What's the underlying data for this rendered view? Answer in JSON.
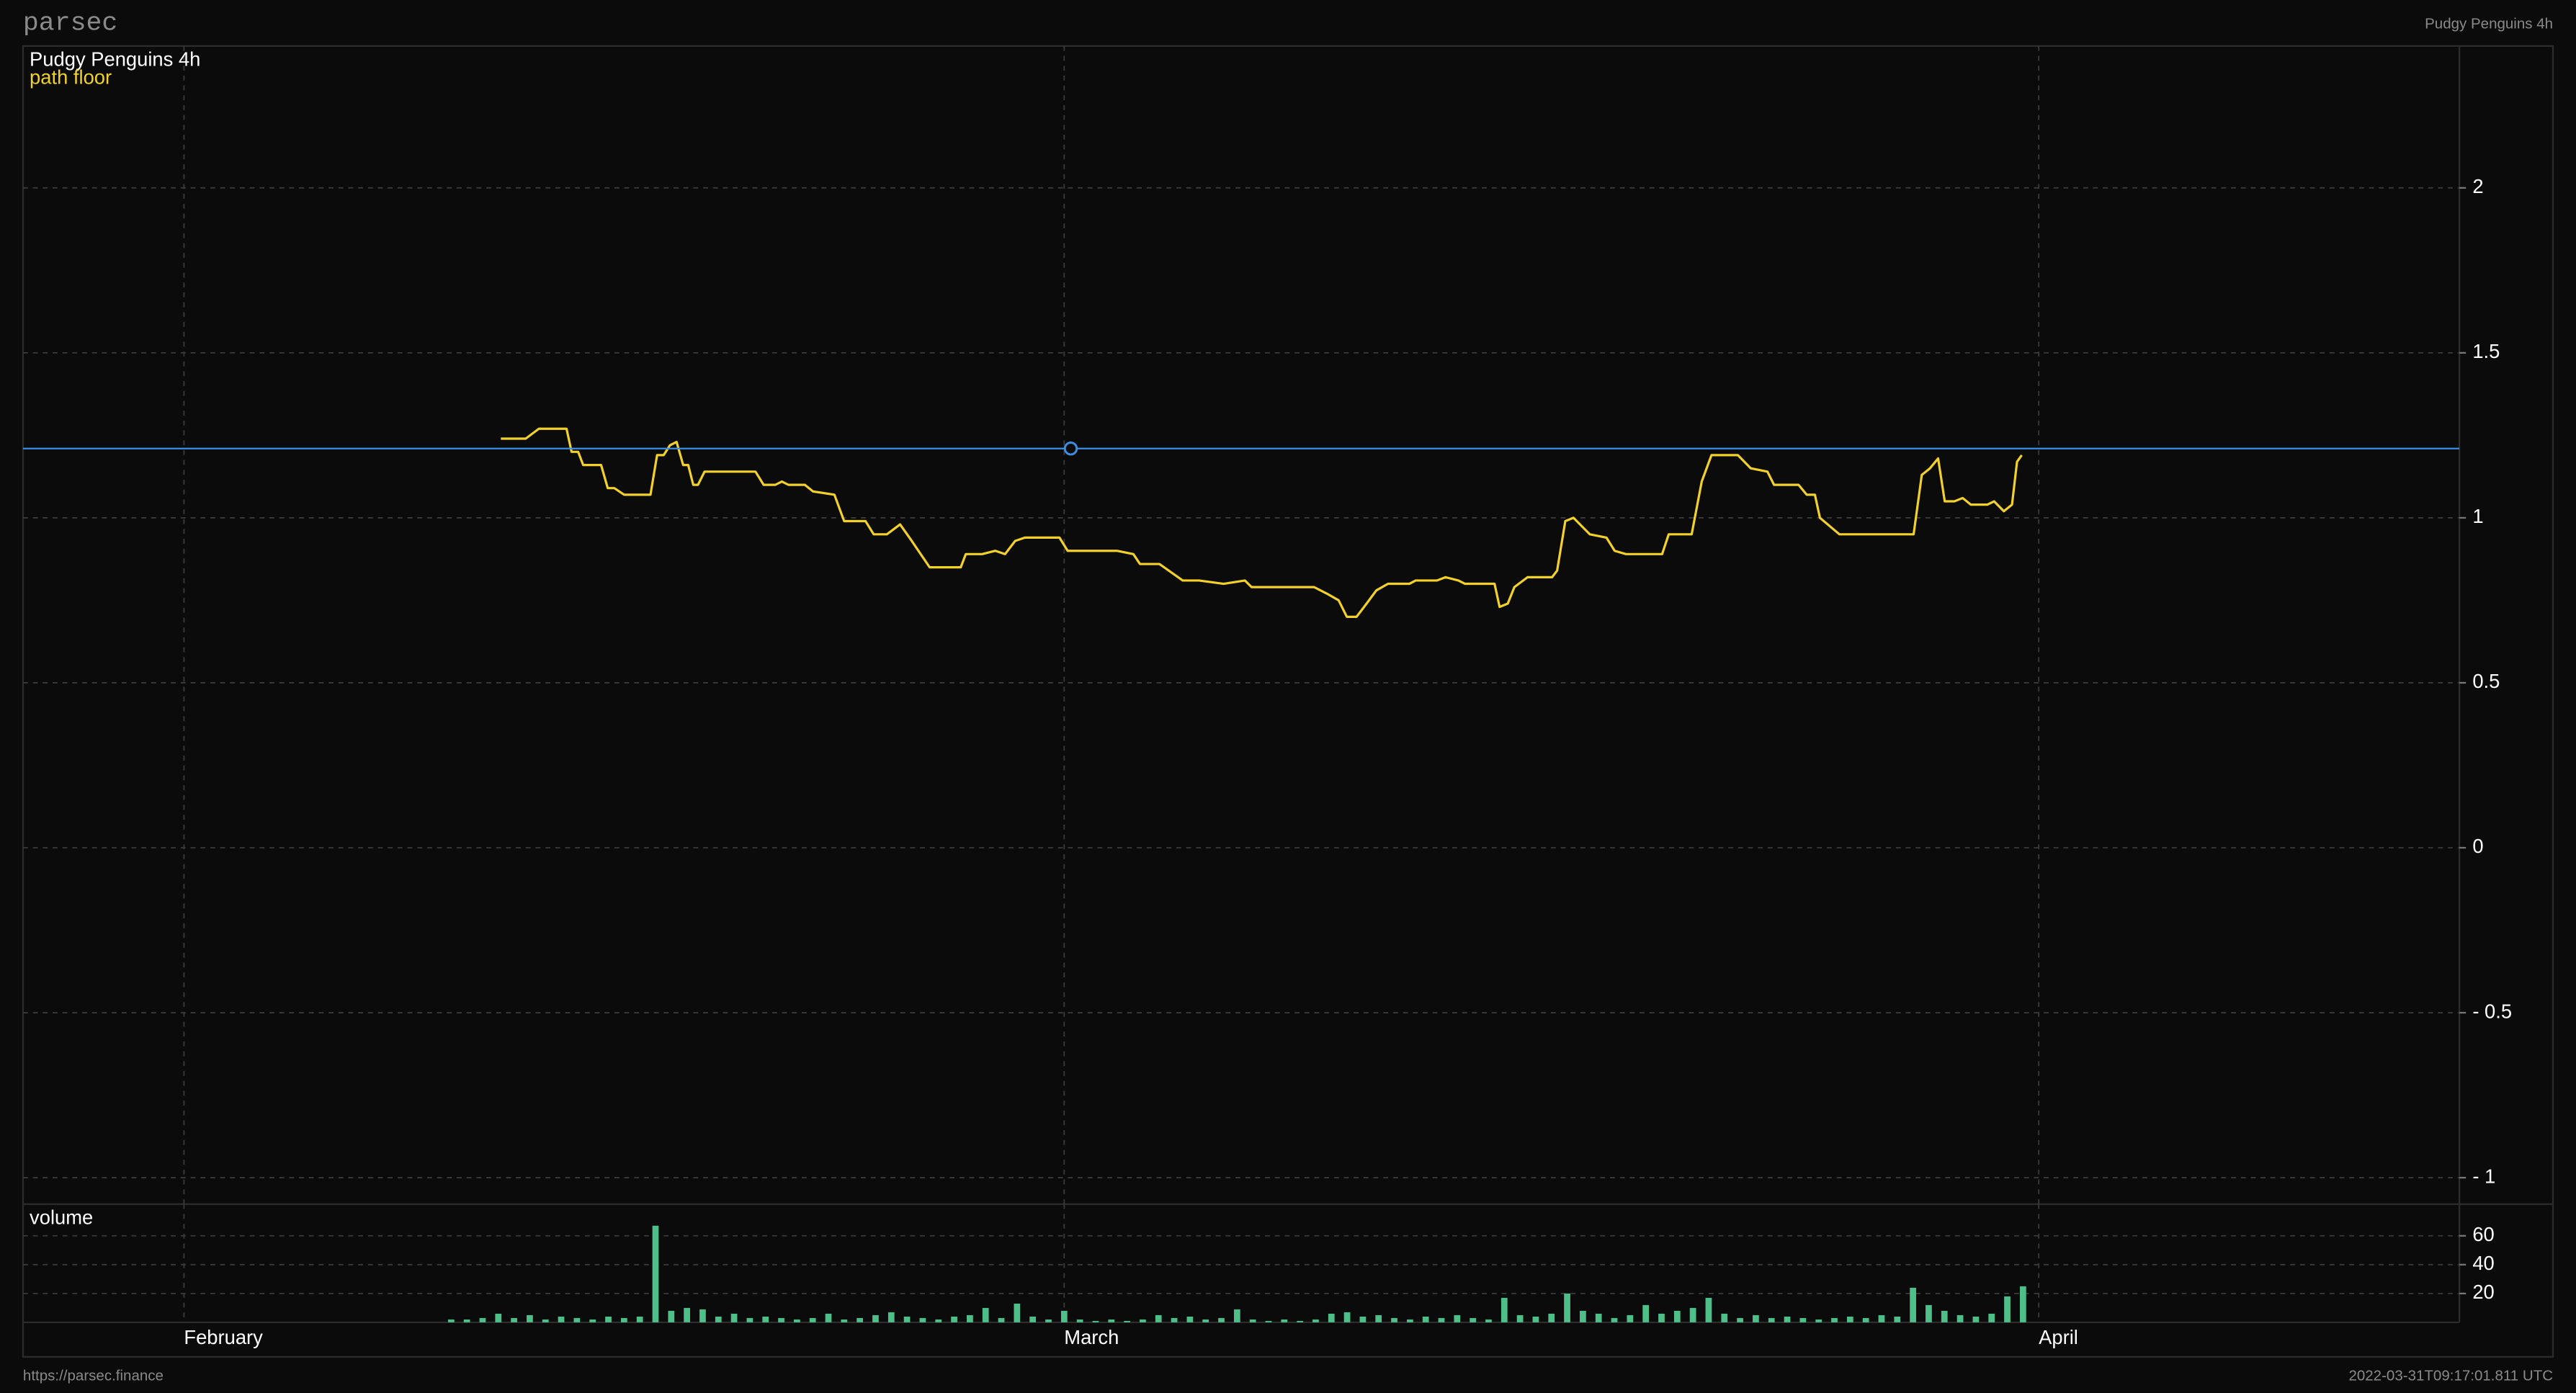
{
  "header": {
    "logo": "parsec",
    "title": "Pudgy Penguins 4h"
  },
  "chart_data": [
    {
      "type": "line",
      "title": "Pudgy Penguins 4h",
      "xlim": [
        -5.12,
        72.38
      ],
      "ylim": [
        -1.08,
        2.43
      ],
      "yticks": [
        2,
        1.5,
        1,
        0.5,
        0,
        {
          "value": -0.5,
          "label": "- 0.5"
        },
        {
          "value": -1,
          "label": "- 1"
        }
      ],
      "grid": true,
      "series": [
        {
          "name": "path floor",
          "color": "#f2d12b",
          "x": [
            10.08,
            10.87,
            11.29,
            12.17,
            12.33,
            12.54,
            12.7,
            13.27,
            13.48,
            13.69,
            14.0,
            14.84,
            15.05,
            15.26,
            15.46,
            15.67,
            15.88,
            16.04,
            16.2,
            16.35,
            16.56,
            16.93,
            18.18,
            18.44,
            18.81,
            19.02,
            19.23,
            19.75,
            20.01,
            20.69,
            21.0,
            21.68,
            21.94,
            22.36,
            22.78,
            23.15,
            23.72,
            24.71,
            24.87,
            25.39,
            25.81,
            26.12,
            26.44,
            26.75,
            27.85,
            28.11,
            29.68,
            30.2,
            30.41,
            31.03,
            31.77,
            32.29,
            33.07,
            33.75,
            33.96,
            35.95,
            36.36,
            36.73,
            36.99,
            37.3,
            37.62,
            37.93,
            38.3,
            38.98,
            39.18,
            39.86,
            40.13,
            40.54,
            40.75,
            41.69,
            41.85,
            42.11,
            42.32,
            42.74,
            43.52,
            43.68,
            43.94,
            44.2,
            44.72,
            45.25,
            45.51,
            45.87,
            47.02,
            47.23,
            47.96,
            48.28,
            48.59,
            49.43,
            49.84,
            50.37,
            50.58,
            51.36,
            51.62,
            51.88,
            52.04,
            52.66,
            55.02,
            55.28,
            55.54,
            55.8,
            56.01,
            56.32,
            56.58,
            56.84,
            57.37,
            57.58,
            57.89,
            58.15,
            58.31,
            58.46
          ],
          "values": [
            1.24,
            1.24,
            1.27,
            1.27,
            1.2,
            1.2,
            1.16,
            1.16,
            1.09,
            1.09,
            1.07,
            1.07,
            1.19,
            1.19,
            1.22,
            1.23,
            1.16,
            1.16,
            1.1,
            1.1,
            1.14,
            1.14,
            1.14,
            1.1,
            1.1,
            1.11,
            1.1,
            1.1,
            1.08,
            1.07,
            0.99,
            0.99,
            0.95,
            0.95,
            0.98,
            0.93,
            0.85,
            0.85,
            0.89,
            0.89,
            0.9,
            0.89,
            0.93,
            0.94,
            0.94,
            0.9,
            0.9,
            0.89,
            0.86,
            0.86,
            0.81,
            0.81,
            0.8,
            0.81,
            0.79,
            0.79,
            0.77,
            0.75,
            0.7,
            0.7,
            0.74,
            0.78,
            0.8,
            0.8,
            0.81,
            0.81,
            0.82,
            0.81,
            0.8,
            0.8,
            0.73,
            0.74,
            0.79,
            0.82,
            0.82,
            0.84,
            0.99,
            1.0,
            0.95,
            0.94,
            0.9,
            0.89,
            0.89,
            0.95,
            0.95,
            1.11,
            1.19,
            1.19,
            1.15,
            1.14,
            1.1,
            1.1,
            1.07,
            1.07,
            1.0,
            0.95,
            0.95,
            1.13,
            1.15,
            1.18,
            1.05,
            1.05,
            1.06,
            1.04,
            1.04,
            1.05,
            1.02,
            1.04,
            1.17,
            1.19
          ]
        }
      ],
      "crosshair": {
        "x": 28.21,
        "y": 1.21,
        "color": "#3a8ee6"
      }
    },
    {
      "type": "bar",
      "title": "volume",
      "color": "#4fbf8a",
      "xlim": [
        -5.12,
        72.38
      ],
      "xticks": [
        {
          "value": 0,
          "label": "February"
        },
        {
          "value": 28,
          "label": "March"
        },
        {
          "value": 59,
          "label": "April"
        }
      ],
      "ylim": [
        0,
        82
      ],
      "yticks": [
        60,
        40,
        20
      ],
      "grid": true,
      "x": [
        8.5,
        9,
        9.5,
        10,
        10.5,
        11,
        11.5,
        12,
        12.5,
        13,
        13.5,
        14,
        14.5,
        15,
        15.5,
        16,
        16.5,
        17,
        17.5,
        18,
        18.5,
        19,
        19.5,
        20,
        20.5,
        21,
        21.5,
        22,
        22.5,
        23,
        23.5,
        24,
        24.5,
        25,
        25.5,
        26,
        26.5,
        27,
        27.5,
        28,
        28.5,
        29,
        29.5,
        30,
        30.5,
        31,
        31.5,
        32,
        32.5,
        33,
        33.5,
        34,
        34.5,
        35,
        35.5,
        36,
        36.5,
        37,
        37.5,
        38,
        38.5,
        39,
        39.5,
        40,
        40.5,
        41,
        41.5,
        42,
        42.5,
        43,
        43.5,
        44,
        44.5,
        45,
        45.5,
        46,
        46.5,
        47,
        47.5,
        48,
        48.5,
        49,
        49.5,
        50,
        50.5,
        51,
        51.5,
        52,
        52.5,
        53,
        53.5,
        54,
        54.5,
        55,
        55.5,
        56,
        56.5,
        57,
        57.5,
        58,
        58.5
      ],
      "values": [
        2,
        2,
        3,
        6,
        3,
        5,
        2,
        4,
        3,
        2,
        4,
        3,
        4,
        67,
        8,
        10,
        9,
        4,
        6,
        3,
        4,
        3,
        2,
        3,
        6,
        2,
        3,
        5,
        7,
        4,
        3,
        2,
        4,
        5,
        10,
        3,
        13,
        4,
        2,
        8,
        2,
        1,
        2,
        1,
        2,
        5,
        3,
        4,
        2,
        3,
        9,
        2,
        1,
        2,
        1,
        2,
        6,
        7,
        4,
        5,
        3,
        2,
        4,
        3,
        5,
        3,
        2,
        17,
        5,
        4,
        6,
        20,
        8,
        6,
        3,
        5,
        12,
        6,
        8,
        10,
        17,
        6,
        3,
        5,
        3,
        4,
        3,
        2,
        3,
        4,
        3,
        5,
        4,
        24,
        12,
        8,
        5,
        4,
        6,
        18,
        25
      ]
    }
  ],
  "footer": {
    "url": "https://parsec.finance",
    "timestamp": "2022-03-31T09:17:01.811 UTC"
  }
}
